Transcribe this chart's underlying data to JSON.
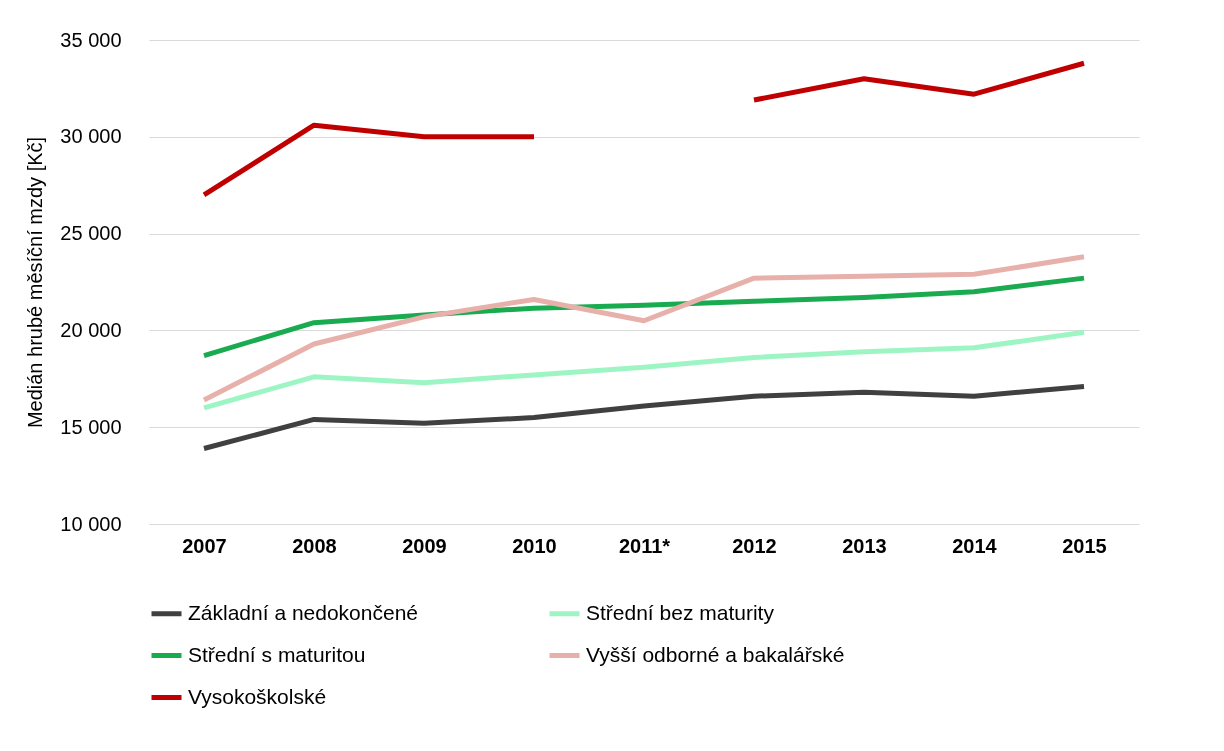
{
  "chart_data": {
    "type": "line",
    "ylabel": "Medián hrubé měsíční mzdy [Kč]",
    "categories": [
      "2007",
      "2008",
      "2009",
      "2010",
      "2011*",
      "2012",
      "2013",
      "2014",
      "2015"
    ],
    "ylim": [
      10000,
      35000
    ],
    "yticks": [
      {
        "value": 10000,
        "label": "10 000"
      },
      {
        "value": 15000,
        "label": "15 000"
      },
      {
        "value": 20000,
        "label": "20 000"
      },
      {
        "value": 25000,
        "label": "25 000"
      },
      {
        "value": 30000,
        "label": "30 000"
      },
      {
        "value": 35000,
        "label": "35 000"
      }
    ],
    "grid": "y",
    "legend": "bottom",
    "line_style": "solid",
    "marker": "none",
    "series": [
      {
        "name": "Základní a nedokončené",
        "color": "#404040",
        "values": [
          13900,
          15400,
          15200,
          15500,
          16100,
          16600,
          16800,
          16600,
          17100
        ]
      },
      {
        "name": "Střední bez maturity",
        "color": "#9ef5c4",
        "values": [
          16000,
          17600,
          17300,
          17700,
          18100,
          18600,
          18900,
          19100,
          19900
        ]
      },
      {
        "name": "Střední s maturitou",
        "color": "#1aaa50",
        "values": [
          18700,
          20400,
          20800,
          21150,
          21300,
          21500,
          21700,
          22000,
          22700
        ]
      },
      {
        "name": "Vyšší odborné a bakalářské",
        "color": "#e8b0aa",
        "values": [
          16400,
          19300,
          20700,
          21600,
          20500,
          22700,
          22800,
          22900,
          23800
        ]
      },
      {
        "name": "Vysokoškolské",
        "color": "#c00000",
        "values": [
          27000,
          30600,
          30000,
          30000,
          null,
          31900,
          33000,
          32200,
          33800
        ]
      }
    ]
  }
}
